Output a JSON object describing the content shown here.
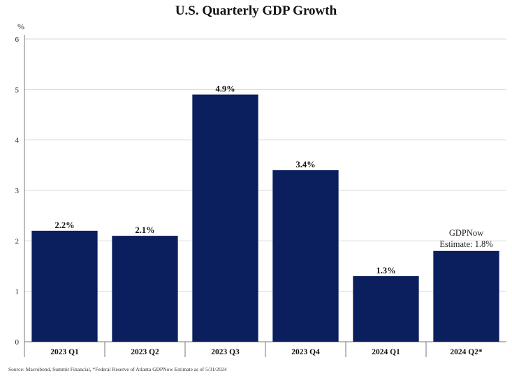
{
  "title": "U.S. Quarterly GDP Growth",
  "unit_label": "%",
  "source": "Source: Macrobond, Summit Financial, *Federal Reserve of Atlanta GDPNow Estimate as of 5/31/2024",
  "colors": {
    "bar": "#0b1f5e",
    "grid": "#d9d9d9",
    "axis": "#777777"
  },
  "chart_data": {
    "type": "bar",
    "title": "U.S. Quarterly GDP Growth",
    "xlabel": "",
    "ylabel": "%",
    "ylim": [
      0,
      6
    ],
    "yticks": [
      0,
      1,
      2,
      3,
      4,
      5,
      6
    ],
    "grid": true,
    "categories": [
      "2023 Q1",
      "2023 Q2",
      "2023 Q3",
      "2023 Q4",
      "2024 Q1",
      "2024 Q2*"
    ],
    "values": [
      2.2,
      2.1,
      4.9,
      3.4,
      1.3,
      1.8
    ],
    "data_labels": [
      "2.2%",
      "2.1%",
      "4.9%",
      "3.4%",
      "1.3%",
      "GDPNow|Estimate: 1.8%"
    ]
  }
}
